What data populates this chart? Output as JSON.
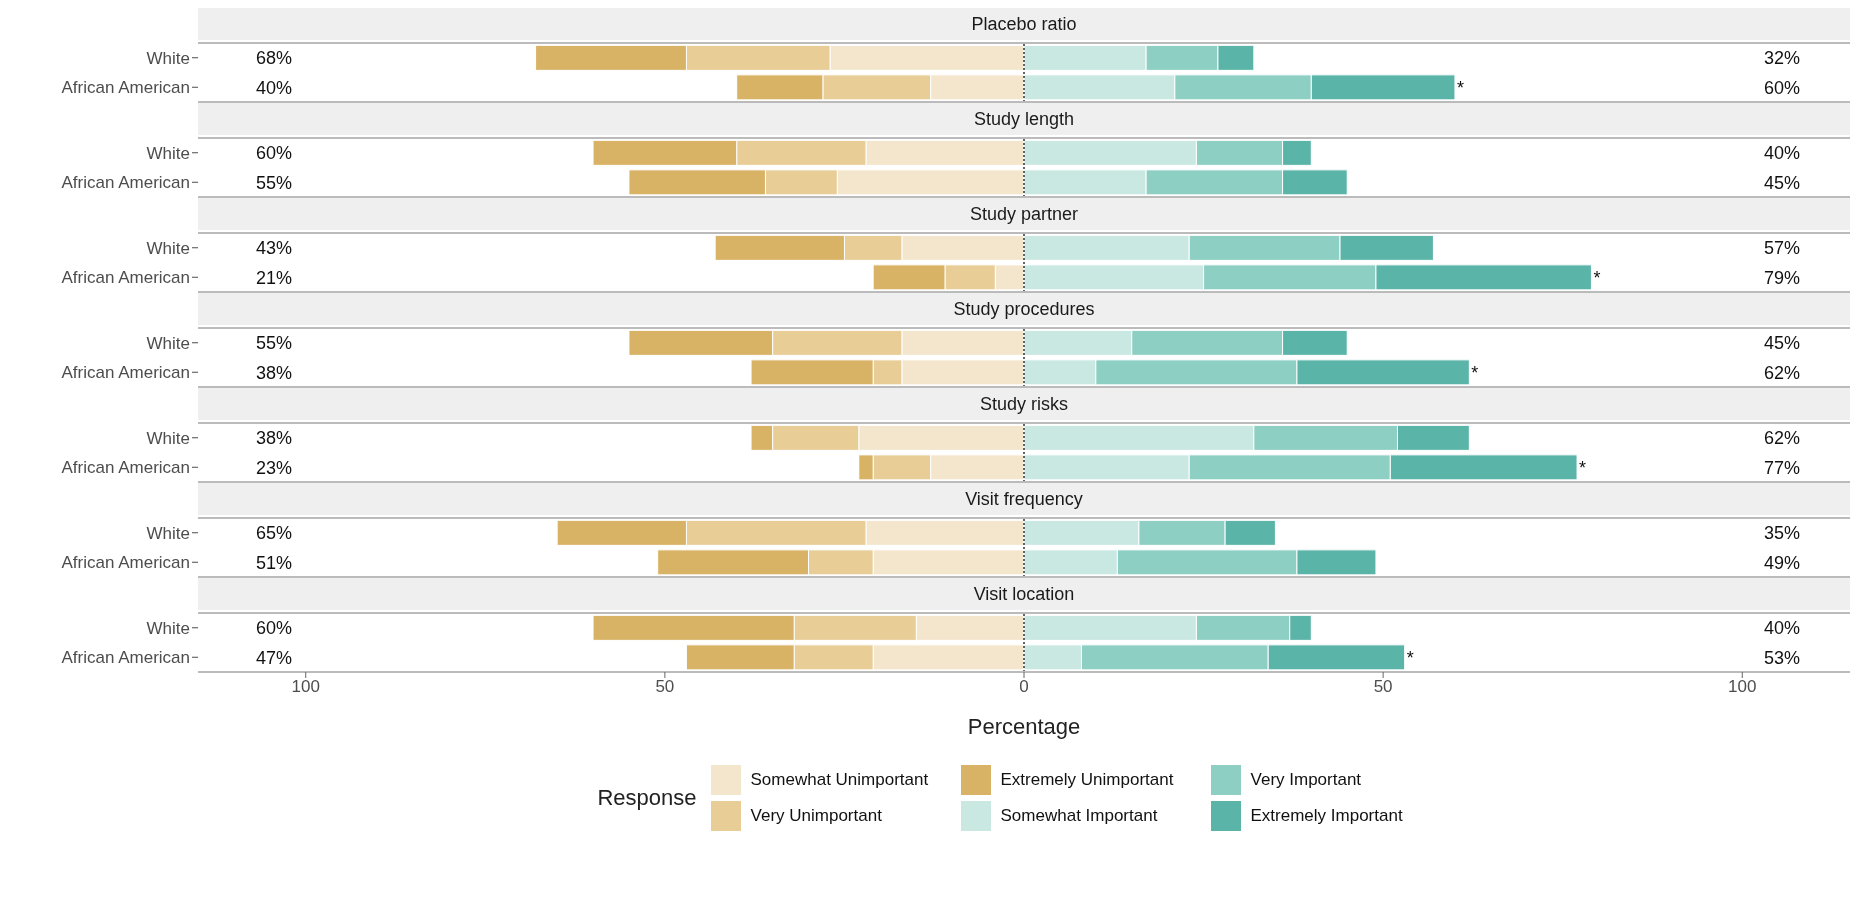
{
  "chart_data": [
    {
      "type": "bar",
      "title": "Placebo ratio",
      "orientation": "horizontal",
      "stacked": true,
      "categories": [
        "White",
        "African American"
      ],
      "xlim": [
        -115,
        115
      ],
      "tick_labels": "y",
      "ref_lines": [
        {
          "axis": "x",
          "value": 0,
          "line_style": "dotted",
          "color": "#333333"
        }
      ],
      "series": [
        {
          "color": "#f4e6cc",
          "values": [
            -27,
            -13
          ]
        },
        {
          "color": "#e8cd97",
          "values": [
            -20,
            -15
          ]
        },
        {
          "color": "#d9b365",
          "values": [
            -21,
            -12
          ]
        },
        {
          "color": "#c9e8e2",
          "values": [
            17,
            21
          ]
        },
        {
          "color": "#8ecfc4",
          "values": [
            10,
            19
          ]
        },
        {
          "color": "#5ab4a8",
          "values": [
            5,
            20
          ]
        }
      ],
      "annotations": [
        "68%",
        "40%",
        "32%",
        "60%",
        {
          "text": "*",
          "x": 60,
          "y": "African American"
        }
      ]
    },
    {
      "type": "bar",
      "title": "Study length",
      "orientation": "horizontal",
      "stacked": true,
      "categories": [
        "White",
        "African American"
      ],
      "xlim": [
        -115,
        115
      ],
      "tick_labels": "y",
      "ref_lines": [
        {
          "axis": "x",
          "value": 0,
          "line_style": "dotted",
          "color": "#333333"
        }
      ],
      "series": [
        {
          "color": "#f4e6cc",
          "values": [
            -22,
            -26
          ]
        },
        {
          "color": "#e8cd97",
          "values": [
            -18,
            -10
          ]
        },
        {
          "color": "#d9b365",
          "values": [
            -20,
            -19
          ]
        },
        {
          "color": "#c9e8e2",
          "values": [
            24,
            17
          ]
        },
        {
          "color": "#8ecfc4",
          "values": [
            12,
            19
          ]
        },
        {
          "color": "#5ab4a8",
          "values": [
            4,
            9
          ]
        }
      ],
      "annotations": [
        "60%",
        "55%",
        "40%",
        "45%"
      ]
    },
    {
      "type": "bar",
      "title": "Study partner",
      "orientation": "horizontal",
      "stacked": true,
      "categories": [
        "White",
        "African American"
      ],
      "xlim": [
        -115,
        115
      ],
      "tick_labels": "y",
      "ref_lines": [
        {
          "axis": "x",
          "value": 0,
          "line_style": "dotted",
          "color": "#333333"
        }
      ],
      "series": [
        {
          "color": "#f4e6cc",
          "values": [
            -17,
            -4
          ]
        },
        {
          "color": "#e8cd97",
          "values": [
            -8,
            -7
          ]
        },
        {
          "color": "#d9b365",
          "values": [
            -18,
            -10
          ]
        },
        {
          "color": "#c9e8e2",
          "values": [
            23,
            25
          ]
        },
        {
          "color": "#8ecfc4",
          "values": [
            21,
            24
          ]
        },
        {
          "color": "#5ab4a8",
          "values": [
            13,
            30
          ]
        }
      ],
      "annotations": [
        "43%",
        "21%",
        "57%",
        "79%",
        {
          "text": "*",
          "x": 79,
          "y": "African American"
        }
      ]
    },
    {
      "type": "bar",
      "title": "Study procedures",
      "orientation": "horizontal",
      "stacked": true,
      "categories": [
        "White",
        "African American"
      ],
      "xlim": [
        -115,
        115
      ],
      "tick_labels": "y",
      "ref_lines": [
        {
          "axis": "x",
          "value": 0,
          "line_style": "dotted",
          "color": "#333333"
        }
      ],
      "series": [
        {
          "color": "#f4e6cc",
          "values": [
            -17,
            -17
          ]
        },
        {
          "color": "#e8cd97",
          "values": [
            -18,
            -4
          ]
        },
        {
          "color": "#d9b365",
          "values": [
            -20,
            -17
          ]
        },
        {
          "color": "#c9e8e2",
          "values": [
            15,
            10
          ]
        },
        {
          "color": "#8ecfc4",
          "values": [
            21,
            28
          ]
        },
        {
          "color": "#5ab4a8",
          "values": [
            9,
            24
          ]
        }
      ],
      "annotations": [
        "55%",
        "38%",
        "45%",
        "62%",
        {
          "text": "*",
          "x": 62,
          "y": "African American"
        }
      ]
    },
    {
      "type": "bar",
      "title": "Study risks",
      "orientation": "horizontal",
      "stacked": true,
      "categories": [
        "White",
        "African American"
      ],
      "xlim": [
        -115,
        115
      ],
      "tick_labels": "y",
      "ref_lines": [
        {
          "axis": "x",
          "value": 0,
          "line_style": "dotted",
          "color": "#333333"
        }
      ],
      "series": [
        {
          "color": "#f4e6cc",
          "values": [
            -23,
            -13
          ]
        },
        {
          "color": "#e8cd97",
          "values": [
            -12,
            -8
          ]
        },
        {
          "color": "#d9b365",
          "values": [
            -3,
            -2
          ]
        },
        {
          "color": "#c9e8e2",
          "values": [
            32,
            23
          ]
        },
        {
          "color": "#8ecfc4",
          "values": [
            20,
            28
          ]
        },
        {
          "color": "#5ab4a8",
          "values": [
            10,
            26
          ]
        }
      ],
      "annotations": [
        "38%",
        "23%",
        "62%",
        "77%",
        {
          "text": "*",
          "x": 77,
          "y": "African American"
        }
      ]
    },
    {
      "type": "bar",
      "title": "Visit frequency",
      "orientation": "horizontal",
      "stacked": true,
      "categories": [
        "White",
        "African American"
      ],
      "xlim": [
        -115,
        115
      ],
      "tick_labels": "y",
      "ref_lines": [
        {
          "axis": "x",
          "value": 0,
          "line_style": "dotted",
          "color": "#333333"
        }
      ],
      "series": [
        {
          "color": "#f4e6cc",
          "values": [
            -22,
            -21
          ]
        },
        {
          "color": "#e8cd97",
          "values": [
            -25,
            -9
          ]
        },
        {
          "color": "#d9b365",
          "values": [
            -18,
            -21
          ]
        },
        {
          "color": "#c9e8e2",
          "values": [
            16,
            13
          ]
        },
        {
          "color": "#8ecfc4",
          "values": [
            12,
            25
          ]
        },
        {
          "color": "#5ab4a8",
          "values": [
            7,
            11
          ]
        }
      ],
      "annotations": [
        "65%",
        "51%",
        "35%",
        "49%"
      ]
    },
    {
      "type": "bar",
      "title": "Visit location",
      "xlabel": "Percentage",
      "legend": "bottom",
      "legend_title": "Response",
      "orientation": "horizontal",
      "stacked": true,
      "categories": [
        "White",
        "African American"
      ],
      "xlim": [
        -115,
        115
      ],
      "xticks": [
        {
          "value": -100,
          "label": "100"
        },
        {
          "value": -50,
          "label": "50"
        },
        0,
        50,
        {
          "value": 100,
          "label": "100"
        }
      ],
      "ref_lines": [
        {
          "axis": "x",
          "value": 0,
          "line_style": "dotted",
          "color": "#333333"
        }
      ],
      "series": [
        {
          "name": "Somewhat Unimportant",
          "color": "#f4e6cc",
          "values": [
            -15,
            -21
          ]
        },
        {
          "name": "Very Unimportant",
          "color": "#e8cd97",
          "values": [
            -17,
            -11
          ]
        },
        {
          "name": "Extremely Unimportant",
          "color": "#d9b365",
          "values": [
            -28,
            -15
          ]
        },
        {
          "name": "Somewhat Important",
          "color": "#c9e8e2",
          "values": [
            24,
            8
          ]
        },
        {
          "name": "Very Important",
          "color": "#8ecfc4",
          "values": [
            13,
            26
          ]
        },
        {
          "name": "Extremely Important",
          "color": "#5ab4a8",
          "values": [
            3,
            19
          ]
        }
      ],
      "annotations": [
        "60%",
        "47%",
        "40%",
        "53%",
        {
          "text": "*",
          "x": 53,
          "y": "African American"
        }
      ]
    }
  ]
}
